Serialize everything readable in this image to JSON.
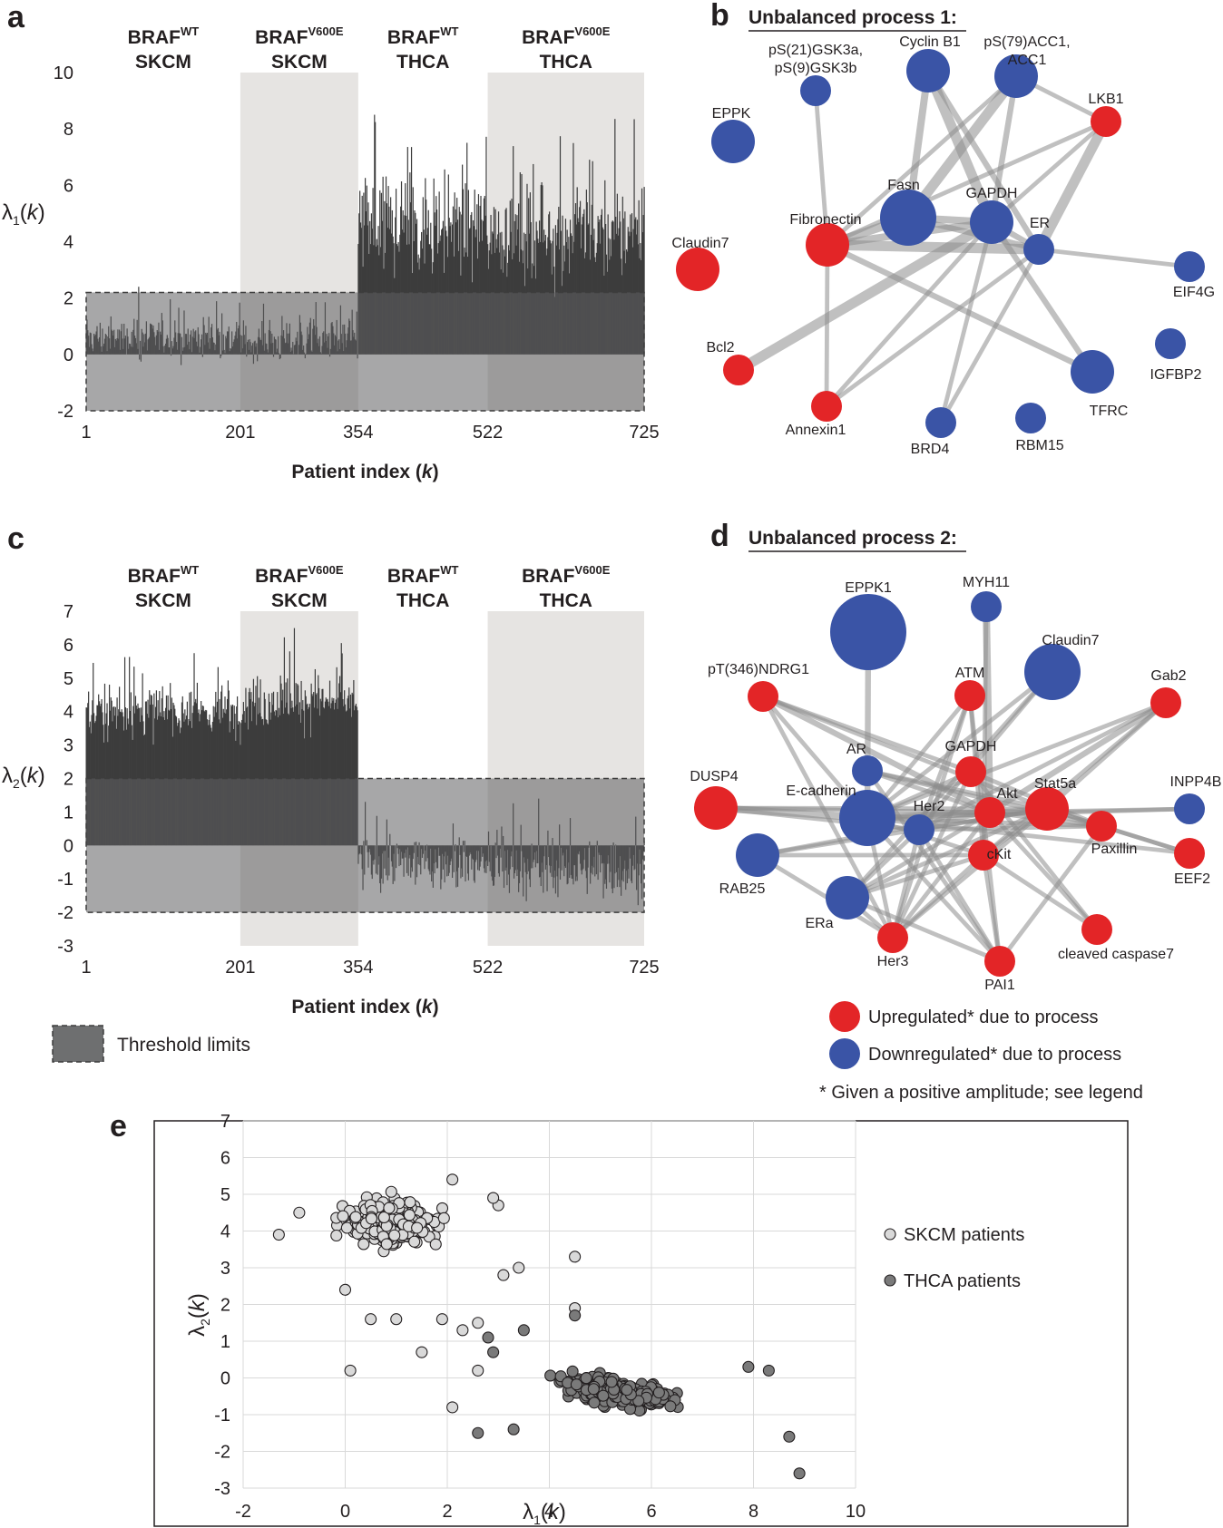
{
  "panels": {
    "a": {
      "letter": "a",
      "chart_data": {
        "type": "bar",
        "title": "",
        "ylabel": "λ1(k)",
        "ylabel_main": "λ",
        "ylabel_sub": "1",
        "ylabel_arg": "(k)",
        "xlabel": "Patient index (k)",
        "xlabel_main": "Patient index (",
        "xlabel_var": "k",
        "xlabel_end": ")",
        "ylim": [
          -2,
          10
        ],
        "yticks": [
          "-2",
          "0",
          "2",
          "4",
          "6",
          "8",
          "10"
        ],
        "xticks": [
          "1",
          "201",
          "354",
          "522",
          "725"
        ],
        "n_patients": 725,
        "threshold": [
          -2,
          2.2
        ],
        "groups": [
          {
            "gene": "BRAF",
            "sup": "WT",
            "cancer": "SKCM",
            "start": 1,
            "end": 201,
            "shaded": false,
            "base": 0.6,
            "spread": 1.2
          },
          {
            "gene": "BRAF",
            "sup": "V600E",
            "cancer": "SKCM",
            "start": 201,
            "end": 354,
            "shaded": true,
            "base": 0.5,
            "spread": 1.3
          },
          {
            "gene": "BRAF",
            "sup": "WT",
            "cancer": "THCA",
            "start": 354,
            "end": 522,
            "shaded": false,
            "base": 4.6,
            "spread": 3.2
          },
          {
            "gene": "BRAF",
            "sup": "V600E",
            "cancer": "THCA",
            "start": 522,
            "end": 725,
            "shaded": true,
            "base": 4.3,
            "spread": 3.0
          }
        ]
      }
    },
    "b": {
      "letter": "b",
      "title": "Unbalanced process 1:",
      "nodes": [
        {
          "id": "gsk",
          "label": "pS(21)GSK3a,\npS(9)GSK3b",
          "reg": "down",
          "size": "s"
        },
        {
          "id": "cyclinb1",
          "label": "Cyclin B1",
          "reg": "down",
          "size": "m"
        },
        {
          "id": "acc1",
          "label": "pS(79)ACC1,\nACC1",
          "reg": "down",
          "size": "m"
        },
        {
          "id": "lkb1",
          "label": "LKB1",
          "reg": "up",
          "size": "s"
        },
        {
          "id": "eppk",
          "label": "EPPK",
          "reg": "down",
          "size": "m"
        },
        {
          "id": "fasn",
          "label": "Fasn",
          "reg": "down",
          "size": "l"
        },
        {
          "id": "gapdh",
          "label": "GAPDH",
          "reg": "down",
          "size": "m"
        },
        {
          "id": "er",
          "label": "ER",
          "reg": "down",
          "size": "s"
        },
        {
          "id": "fibronectin",
          "label": "Fibronectin",
          "reg": "up",
          "size": "m"
        },
        {
          "id": "claudin7",
          "label": "Claudin7",
          "reg": "up",
          "size": "m"
        },
        {
          "id": "eif4g",
          "label": "EIF4G",
          "reg": "down",
          "size": "s"
        },
        {
          "id": "igfbp2",
          "label": "IGFBP2",
          "reg": "down",
          "size": "s"
        },
        {
          "id": "bcl2",
          "label": "Bcl2",
          "reg": "up",
          "size": "s"
        },
        {
          "id": "tfrc",
          "label": "TFRC",
          "reg": "down",
          "size": "m"
        },
        {
          "id": "annexin1",
          "label": "Annexin1",
          "reg": "up",
          "size": "s"
        },
        {
          "id": "brd4",
          "label": "BRD4",
          "reg": "down",
          "size": "s"
        },
        {
          "id": "rbm15",
          "label": "RBM15",
          "reg": "down",
          "size": "s"
        }
      ],
      "edges": [
        [
          "gsk",
          "fibronectin",
          3
        ],
        [
          "cyclinb1",
          "fasn",
          5
        ],
        [
          "cyclinb1",
          "gapdh",
          7
        ],
        [
          "cyclinb1",
          "er",
          4
        ],
        [
          "acc1",
          "fasn",
          7
        ],
        [
          "acc1",
          "gapdh",
          4
        ],
        [
          "acc1",
          "lkb1",
          3
        ],
        [
          "acc1",
          "fibronectin",
          3
        ],
        [
          "lkb1",
          "fibronectin",
          3
        ],
        [
          "lkb1",
          "er",
          7
        ],
        [
          "lkb1",
          "gapdh",
          3
        ],
        [
          "fasn",
          "fibronectin",
          6
        ],
        [
          "fasn",
          "gapdh",
          5
        ],
        [
          "fasn",
          "er",
          4
        ],
        [
          "gapdh",
          "fibronectin",
          5
        ],
        [
          "gapdh",
          "er",
          4
        ],
        [
          "er",
          "fibronectin",
          7
        ],
        [
          "er",
          "eif4g",
          3
        ],
        [
          "er",
          "brd4",
          3
        ],
        [
          "gapdh",
          "tfrc",
          4
        ],
        [
          "gapdh",
          "brd4",
          3
        ],
        [
          "gapdh",
          "annexin1",
          3
        ],
        [
          "bcl2",
          "gapdh",
          7
        ],
        [
          "fibronectin",
          "annexin1",
          3
        ],
        [
          "fibronectin",
          "tfrc",
          4
        ],
        [
          "er",
          "annexin1",
          3
        ]
      ]
    },
    "c": {
      "letter": "c",
      "chart_data": {
        "type": "bar",
        "title": "",
        "ylabel": "λ2(k)",
        "ylabel_main": "λ",
        "ylabel_sub": "2",
        "ylabel_arg": "(k)",
        "xlabel": "Patient index (k)",
        "xlabel_main": "Patient index (",
        "xlabel_var": "k",
        "xlabel_end": ")",
        "ylim": [
          -3,
          7
        ],
        "yticks": [
          "-3",
          "-2",
          "-1",
          "0",
          "1",
          "2",
          "3",
          "4",
          "5",
          "6",
          "7"
        ],
        "xticks": [
          "1",
          "201",
          "354",
          "522",
          "725"
        ],
        "n_patients": 725,
        "threshold": [
          -2,
          2
        ],
        "groups": [
          {
            "gene": "BRAF",
            "sup": "WT",
            "cancer": "SKCM",
            "start": 1,
            "end": 201,
            "shaded": false,
            "base": 4.0,
            "spread": 1.4
          },
          {
            "gene": "BRAF",
            "sup": "V600E",
            "cancer": "SKCM",
            "start": 201,
            "end": 354,
            "shaded": true,
            "base": 4.3,
            "spread": 1.4
          },
          {
            "gene": "BRAF",
            "sup": "WT",
            "cancer": "THCA",
            "start": 354,
            "end": 522,
            "shaded": false,
            "base": -0.5,
            "spread": 1.4
          },
          {
            "gene": "BRAF",
            "sup": "V600E",
            "cancer": "THCA",
            "start": 522,
            "end": 725,
            "shaded": true,
            "base": -0.7,
            "spread": 1.4
          }
        ]
      },
      "threshold_legend": "Threshold limits"
    },
    "d": {
      "letter": "d",
      "title": "Unbalanced process 2:",
      "nodes": [
        {
          "id": "eppk1",
          "label": "EPPK1",
          "reg": "down",
          "size": "xl"
        },
        {
          "id": "myh11",
          "label": "MYH11",
          "reg": "down",
          "size": "s"
        },
        {
          "id": "claudin7",
          "label": "Claudin7",
          "reg": "down",
          "size": "l"
        },
        {
          "id": "ndrg1",
          "label": "pT(346)NDRG1",
          "reg": "up",
          "size": "s"
        },
        {
          "id": "atm",
          "label": "ATM",
          "reg": "up",
          "size": "s"
        },
        {
          "id": "gab2",
          "label": "Gab2",
          "reg": "up",
          "size": "s"
        },
        {
          "id": "ar",
          "label": "AR",
          "reg": "down",
          "size": "s"
        },
        {
          "id": "gapdh",
          "label": "GAPDH",
          "reg": "up",
          "size": "s"
        },
        {
          "id": "inpp4b",
          "label": "INPP4B",
          "reg": "down",
          "size": "s"
        },
        {
          "id": "dusp4",
          "label": "DUSP4",
          "reg": "up",
          "size": "m"
        },
        {
          "id": "ecadherin",
          "label": "E-cadherin",
          "reg": "down",
          "size": "l"
        },
        {
          "id": "her2",
          "label": "Her2",
          "reg": "down",
          "size": "s"
        },
        {
          "id": "akt",
          "label": "Akt",
          "reg": "up",
          "size": "s"
        },
        {
          "id": "stat5a",
          "label": "Stat5a",
          "reg": "up",
          "size": "m"
        },
        {
          "id": "paxillin",
          "label": "Paxillin",
          "reg": "up",
          "size": "s"
        },
        {
          "id": "eef2",
          "label": "EEF2",
          "reg": "up",
          "size": "s"
        },
        {
          "id": "rab25",
          "label": "RAB25",
          "reg": "down",
          "size": "m"
        },
        {
          "id": "ckit",
          "label": "cKit",
          "reg": "up",
          "size": "s"
        },
        {
          "id": "era",
          "label": "ERa",
          "reg": "down",
          "size": "m"
        },
        {
          "id": "caspase7",
          "label": "cleaved caspase7",
          "reg": "up",
          "size": "s"
        },
        {
          "id": "her3",
          "label": "Her3",
          "reg": "up",
          "size": "s"
        },
        {
          "id": "pai1",
          "label": "PAI1",
          "reg": "up",
          "size": "s"
        }
      ],
      "edges": [
        [
          "eppk1",
          "ecadherin",
          4
        ],
        [
          "myh11",
          "akt",
          5
        ],
        [
          "myh11",
          "ckit",
          3
        ],
        [
          "claudin7",
          "ecadherin",
          3
        ],
        [
          "claudin7",
          "her2",
          3
        ],
        [
          "claudin7",
          "era",
          3
        ],
        [
          "ndrg1",
          "akt",
          4
        ],
        [
          "ndrg1",
          "ecadherin",
          3
        ],
        [
          "ndrg1",
          "her3",
          3
        ],
        [
          "ndrg1",
          "stat5a",
          3
        ],
        [
          "ndrg1",
          "gapdh",
          3
        ],
        [
          "atm",
          "ecadherin",
          3
        ],
        [
          "atm",
          "her2",
          3
        ],
        [
          "atm",
          "ckit",
          3
        ],
        [
          "atm",
          "pai1",
          3
        ],
        [
          "atm",
          "her3",
          3
        ],
        [
          "gab2",
          "ecadherin",
          3
        ],
        [
          "gab2",
          "akt",
          4
        ],
        [
          "gab2",
          "ckit",
          3
        ],
        [
          "gab2",
          "her2",
          3
        ],
        [
          "gab2",
          "stat5a",
          3
        ],
        [
          "ar",
          "stat5a",
          3
        ],
        [
          "ar",
          "akt",
          3
        ],
        [
          "ar",
          "paxillin",
          3
        ],
        [
          "ar",
          "pai1",
          3
        ],
        [
          "gapdh",
          "ecadherin",
          3
        ],
        [
          "gapdh",
          "her3",
          3
        ],
        [
          "gapdh",
          "paxillin",
          3
        ],
        [
          "gapdh",
          "caspase7",
          3
        ],
        [
          "inpp4b",
          "ecadherin",
          3
        ],
        [
          "inpp4b",
          "akt",
          3
        ],
        [
          "dusp4",
          "akt",
          3
        ],
        [
          "dusp4",
          "stat5a",
          3
        ],
        [
          "dusp4",
          "her2",
          3
        ],
        [
          "dusp4",
          "ecadherin",
          5
        ],
        [
          "ecadherin",
          "akt",
          5
        ],
        [
          "ecadherin",
          "stat5a",
          3
        ],
        [
          "ecadherin",
          "paxillin",
          3
        ],
        [
          "ecadherin",
          "eef2",
          3
        ],
        [
          "ecadherin",
          "ckit",
          3
        ],
        [
          "ecadherin",
          "her3",
          3
        ],
        [
          "ecadherin",
          "pai1",
          3
        ],
        [
          "her2",
          "paxillin",
          3
        ],
        [
          "her2",
          "pai1",
          3
        ],
        [
          "her2",
          "era",
          3
        ],
        [
          "her2",
          "her3",
          3
        ],
        [
          "her2",
          "stat5a",
          3
        ],
        [
          "akt",
          "paxillin",
          3
        ],
        [
          "akt",
          "caspase7",
          3
        ],
        [
          "akt",
          "rab25",
          3
        ],
        [
          "akt",
          "her3",
          3
        ],
        [
          "akt",
          "era",
          3
        ],
        [
          "stat5a",
          "paxillin",
          3
        ],
        [
          "stat5a",
          "eef2",
          3
        ],
        [
          "stat5a",
          "rab25",
          3
        ],
        [
          "stat5a",
          "ckit",
          3
        ],
        [
          "stat5a",
          "era",
          3
        ],
        [
          "stat5a",
          "her3",
          3
        ],
        [
          "ckit",
          "rab25",
          3
        ],
        [
          "ckit",
          "era",
          3
        ],
        [
          "ckit",
          "her3",
          3
        ],
        [
          "ckit",
          "pai1",
          3
        ],
        [
          "ckit",
          "caspase7",
          3
        ],
        [
          "era",
          "pai1",
          3
        ],
        [
          "era",
          "her3",
          3
        ],
        [
          "rab25",
          "her3",
          3
        ],
        [
          "paxillin",
          "pai1",
          3
        ],
        [
          "paxillin",
          "eef2",
          3
        ]
      ],
      "legend": {
        "up_label": "Upregulated* due to process",
        "down_label": "Downregulated* due to process",
        "footnote": "* Given a positive amplitude; see legend"
      }
    },
    "e": {
      "letter": "e",
      "chart_data": {
        "type": "scatter",
        "title": "",
        "xlabel": "λ1(k)",
        "xlabel_main": "λ",
        "xlabel_sub": "1",
        "xlabel_arg": "(k)",
        "ylabel": "λ2(k)",
        "ylabel_main": "λ",
        "ylabel_sub": "2",
        "ylabel_arg": "(k)",
        "xlim": [
          -2,
          10
        ],
        "ylim": [
          -3,
          7
        ],
        "xticks": [
          "-2",
          "0",
          "2",
          "4",
          "6",
          "8",
          "10"
        ],
        "yticks": [
          "-3",
          "-2",
          "-1",
          "0",
          "1",
          "2",
          "3",
          "4",
          "5",
          "6",
          "7"
        ],
        "grid": true,
        "legend_position": "right",
        "series": [
          {
            "name": "SKCM patients",
            "color": "#d9d9d9",
            "n": 354,
            "center": [
              0.9,
              4.2
            ],
            "spread": [
              1.5,
              1.0
            ],
            "outliers": [
              [
                -1.3,
                3.9
              ],
              [
                -0.9,
                4.5
              ],
              [
                0.1,
                0.2
              ],
              [
                0.5,
                1.6
              ],
              [
                1.0,
                1.6
              ],
              [
                1.5,
                0.7
              ],
              [
                1.9,
                1.6
              ],
              [
                2.1,
                -0.8
              ],
              [
                2.6,
                1.5
              ],
              [
                3.1,
                2.8
              ],
              [
                3.4,
                3.0
              ],
              [
                4.5,
                3.3
              ],
              [
                4.5,
                1.9
              ],
              [
                2.1,
                5.4
              ],
              [
                3.0,
                4.7
              ],
              [
                2.9,
                4.9
              ],
              [
                0.0,
                2.4
              ],
              [
                2.3,
                1.3
              ],
              [
                2.6,
                0.2
              ]
            ]
          },
          {
            "name": "THCA patients",
            "color": "#7a7a7a",
            "n": 371,
            "center": [
              5.4,
              -0.4
            ],
            "spread": [
              1.8,
              0.6
            ],
            "outliers": [
              [
                8.9,
                -2.6
              ],
              [
                2.6,
                -1.5
              ],
              [
                2.8,
                1.1
              ],
              [
                2.9,
                0.7
              ],
              [
                3.3,
                -1.4
              ],
              [
                7.9,
                0.3
              ],
              [
                8.3,
                0.2
              ],
              [
                4.5,
                1.7
              ],
              [
                3.5,
                1.3
              ],
              [
                8.7,
                -1.6
              ]
            ]
          }
        ]
      }
    }
  },
  "colors": {
    "up": "#e32527",
    "down": "#3a54a6",
    "bar_fill": "#3c3c3c",
    "threshold_fill": "#5e5f61",
    "shade": "#e6e4e2"
  }
}
